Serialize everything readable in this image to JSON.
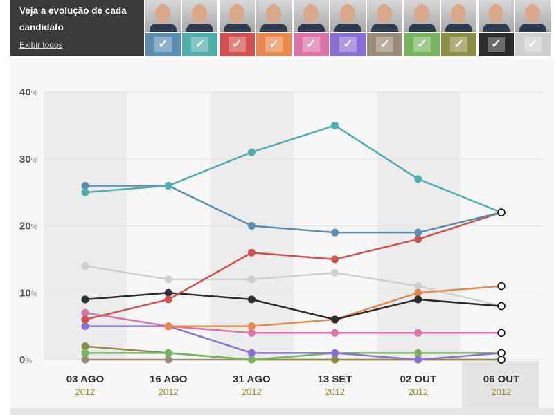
{
  "header": {
    "title": "Veja a evolução de cada candidato",
    "show_all": "Exibir todos"
  },
  "candidates": [
    {
      "color": "#5b8db3",
      "icon": "photo-candidate"
    },
    {
      "color": "#4fadab",
      "icon": "photo-candidate"
    },
    {
      "color": "#d24f4f",
      "icon": "photo-candidate"
    },
    {
      "color": "#e8884a",
      "icon": "photo-candidate"
    },
    {
      "color": "#dd72ab",
      "icon": "photo-candidate"
    },
    {
      "color": "#8c6fd6",
      "icon": "photo-candidate"
    },
    {
      "color": "#9a8a78",
      "icon": "photo-candidate"
    },
    {
      "color": "#77b45d",
      "icon": "photo-candidate"
    },
    {
      "color": "#8d8c45",
      "icon": "photo-group"
    },
    {
      "color": "#2c2c2c",
      "icon": "photo-question"
    },
    {
      "color": "#cfcfcf",
      "icon": "photo-ballot-x"
    }
  ],
  "chart_data": {
    "type": "line",
    "categories": [
      "03 AGO",
      "16 AGO",
      "31 AGO",
      "13 SET",
      "02 OUT",
      "06 OUT"
    ],
    "years": [
      "2012",
      "2012",
      "2012",
      "2012",
      "2012",
      "2012"
    ],
    "yticks": [
      "0",
      "10",
      "20",
      "30",
      "40"
    ],
    "yunit": "%",
    "ylim": [
      0,
      40
    ],
    "series": [
      {
        "color": "#cfcfcf",
        "values": [
          14,
          12,
          12,
          13,
          11,
          8
        ]
      },
      {
        "color": "#9a8a78",
        "values": [
          0,
          0,
          0,
          0,
          0,
          0
        ]
      },
      {
        "color": "#8d8c45",
        "values": [
          2,
          1,
          0,
          0,
          0,
          0
        ]
      },
      {
        "color": "#77b45d",
        "values": [
          1,
          1,
          0,
          1,
          1,
          1
        ]
      },
      {
        "color": "#8c6fd6",
        "values": [
          5,
          5,
          1,
          1,
          0,
          1
        ]
      },
      {
        "color": "#dd72ab",
        "values": [
          7,
          5,
          4,
          4,
          4,
          4
        ]
      },
      {
        "color": "#e8884a",
        "values": [
          null,
          5,
          5,
          6,
          10,
          11
        ]
      },
      {
        "color": "#2c2c2c",
        "values": [
          9,
          10,
          9,
          6,
          9,
          8
        ]
      },
      {
        "color": "#d24f4f",
        "values": [
          6,
          9,
          16,
          15,
          18,
          22
        ]
      },
      {
        "color": "#5b8db3",
        "values": [
          26,
          26,
          20,
          19,
          19,
          22
        ]
      },
      {
        "color": "#4fadab",
        "values": [
          25,
          26,
          31,
          35,
          27,
          22
        ]
      }
    ]
  }
}
